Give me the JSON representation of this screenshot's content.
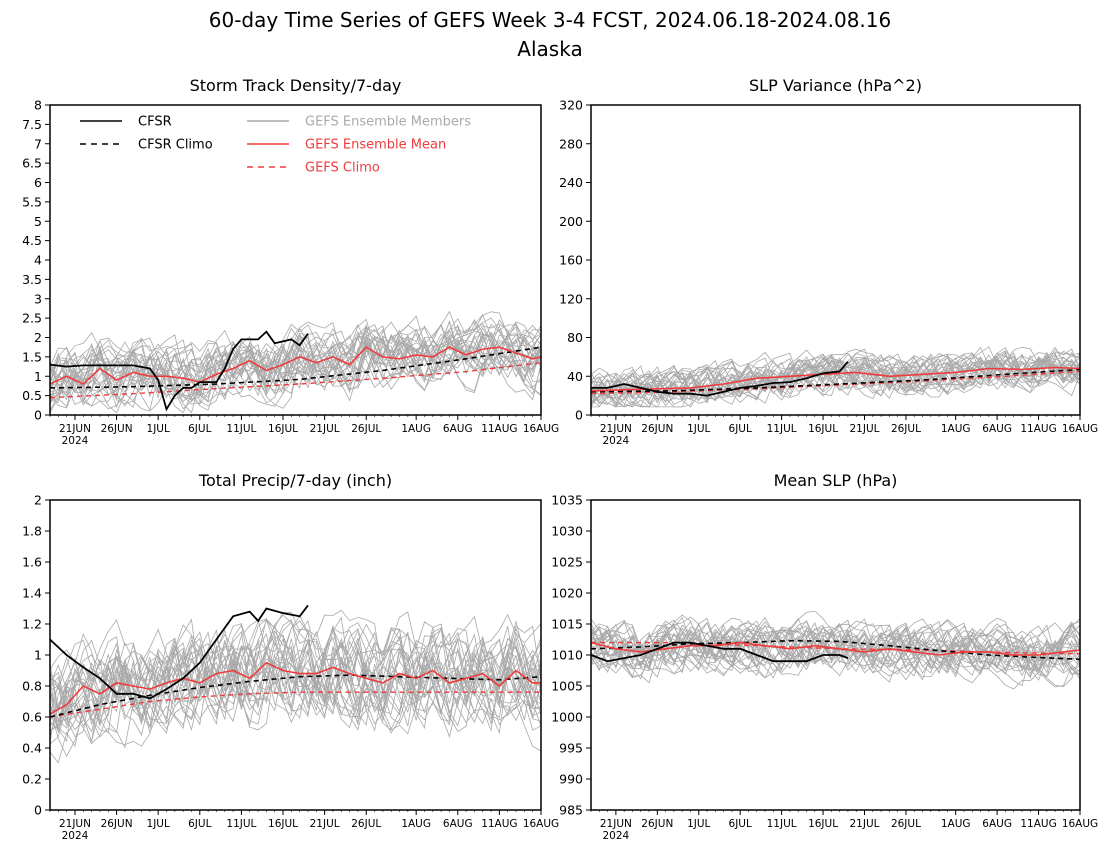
{
  "figure": {
    "title": "60-day Time Series of GEFS Week 3-4 FCST, 2024.06.18-2024.08.16",
    "subtitle": "Alaska"
  },
  "colors": {
    "cfsr": "#000000",
    "members": "#a9a9a9",
    "mean": "#ef3b3b",
    "climo_gefs": "#ef3b3b",
    "axis": "#000000"
  },
  "legend": {
    "placement": "top-left",
    "entries": [
      {
        "label": "CFSR",
        "series": "cfsr",
        "style": "solid",
        "color": "#000000"
      },
      {
        "label": "CFSR Climo",
        "series": "cfsr_climo",
        "style": "dashed",
        "color": "#000000"
      },
      {
        "label": "GEFS Ensemble Members",
        "series": "members",
        "style": "solid",
        "color": "#a9a9a9"
      },
      {
        "label": "GEFS Ensemble Mean",
        "series": "mean",
        "style": "solid",
        "color": "#ef3b3b"
      },
      {
        "label": "GEFS Climo",
        "series": "gefs_climo",
        "style": "dashed",
        "color": "#ef3b3b"
      }
    ]
  },
  "x_axis": {
    "ticks": [
      "21JUN",
      "26JUN",
      "1JUL",
      "6JUL",
      "11JUL",
      "16JUL",
      "21JUL",
      "26JUL",
      "1AUG",
      "6AUG",
      "11AUG",
      "16AUG"
    ],
    "tick_days": [
      3,
      8,
      13,
      18,
      23,
      28,
      33,
      38,
      44,
      49,
      54,
      59
    ],
    "year_label": "2024",
    "range_days": [
      0,
      59
    ]
  },
  "chart_data": [
    {
      "type": "line",
      "title": "Storm Track Density/7-day",
      "ylim": [
        0,
        8
      ],
      "yticks": [
        0,
        0.5,
        1,
        1.5,
        2,
        2.5,
        3,
        3.5,
        4,
        4.5,
        5,
        5.5,
        6,
        6.5,
        7,
        7.5,
        8
      ],
      "ytick_labels": [
        "0",
        "0.5",
        "1",
        "1.5",
        "2",
        "2.5",
        "3",
        "3.5",
        "4",
        "4.5",
        "5",
        "5.5",
        "6",
        "6.5",
        "7",
        "7.5",
        "8"
      ],
      "member_spread": {
        "low": 0.1,
        "high": 2.8
      },
      "series": [
        {
          "name": "CFSR",
          "key": "cfsr",
          "x": [
            0,
            2,
            4,
            6,
            8,
            10,
            12,
            13,
            14,
            15,
            16,
            17,
            18,
            19,
            20,
            21,
            22,
            23,
            24,
            25,
            26,
            27,
            28,
            29,
            30,
            31
          ],
          "values": [
            1.3,
            1.25,
            1.28,
            1.28,
            1.28,
            1.28,
            1.2,
            0.9,
            0.15,
            0.5,
            0.7,
            0.7,
            0.85,
            0.85,
            0.85,
            1.2,
            1.7,
            1.95,
            1.95,
            1.95,
            2.15,
            1.85,
            1.9,
            1.95,
            1.8,
            2.1
          ]
        },
        {
          "name": "CFSR Climo",
          "key": "cfsr_climo",
          "x": [
            0,
            10,
            20,
            30,
            40,
            50,
            59
          ],
          "values": [
            0.7,
            0.73,
            0.8,
            0.92,
            1.15,
            1.45,
            1.75
          ]
        },
        {
          "name": "GEFS Ensemble Mean",
          "key": "mean",
          "x": [
            0,
            2,
            4,
            6,
            8,
            10,
            12,
            14,
            16,
            18,
            20,
            22,
            24,
            26,
            28,
            30,
            32,
            34,
            36,
            38,
            40,
            42,
            44,
            46,
            48,
            50,
            52,
            54,
            56,
            58,
            59
          ],
          "values": [
            0.8,
            1.0,
            0.8,
            1.2,
            0.9,
            1.1,
            1.0,
            1.0,
            0.95,
            0.85,
            1.05,
            1.2,
            1.4,
            1.15,
            1.3,
            1.5,
            1.35,
            1.5,
            1.3,
            1.75,
            1.5,
            1.45,
            1.55,
            1.5,
            1.75,
            1.55,
            1.7,
            1.75,
            1.6,
            1.45,
            1.5
          ]
        },
        {
          "name": "GEFS Climo",
          "key": "gefs_climo",
          "x": [
            0,
            10,
            20,
            30,
            40,
            50,
            59
          ],
          "values": [
            0.45,
            0.55,
            0.68,
            0.8,
            0.95,
            1.12,
            1.35
          ]
        }
      ]
    },
    {
      "type": "line",
      "title": "SLP Variance (hPa^2)",
      "ylim": [
        0,
        320
      ],
      "yticks": [
        0,
        40,
        80,
        120,
        160,
        200,
        240,
        280,
        320
      ],
      "ytick_labels": [
        "0",
        "40",
        "80",
        "120",
        "160",
        "200",
        "240",
        "280",
        "320"
      ],
      "member_spread": {
        "low": 14,
        "high": 85
      },
      "series": [
        {
          "name": "CFSR",
          "key": "cfsr",
          "x": [
            0,
            2,
            4,
            6,
            8,
            10,
            12,
            14,
            16,
            18,
            20,
            22,
            24,
            26,
            28,
            30,
            31
          ],
          "values": [
            28,
            28,
            32,
            28,
            24,
            22,
            22,
            20,
            24,
            28,
            30,
            33,
            34,
            38,
            43,
            45,
            55
          ]
        },
        {
          "name": "CFSR Climo",
          "key": "cfsr_climo",
          "x": [
            0,
            10,
            20,
            30,
            40,
            50,
            59
          ],
          "values": [
            24,
            25,
            28,
            32,
            36,
            42,
            47
          ]
        },
        {
          "name": "GEFS Ensemble Mean",
          "key": "mean",
          "x": [
            0,
            4,
            8,
            12,
            16,
            20,
            24,
            28,
            32,
            36,
            40,
            44,
            48,
            52,
            56,
            59
          ],
          "values": [
            25,
            26,
            27,
            28,
            32,
            38,
            40,
            42,
            44,
            40,
            42,
            44,
            48,
            47,
            49,
            48
          ]
        },
        {
          "name": "GEFS Climo",
          "key": "gefs_climo",
          "x": [
            0,
            10,
            20,
            30,
            40,
            50,
            59
          ],
          "values": [
            22,
            24,
            27,
            31,
            35,
            40,
            45
          ]
        }
      ]
    },
    {
      "type": "line",
      "title": "Total Precip/7-day (inch)",
      "ylim": [
        0,
        2
      ],
      "yticks": [
        0,
        0.2,
        0.4,
        0.6,
        0.8,
        1,
        1.2,
        1.4,
        1.6,
        1.8,
        2
      ],
      "ytick_labels": [
        "0",
        "0.2",
        "0.4",
        "0.6",
        "0.8",
        "1",
        "1.2",
        "1.4",
        "1.6",
        "1.8",
        "2"
      ],
      "member_spread": {
        "low": 0.35,
        "high": 1.4
      },
      "series": [
        {
          "name": "CFSR",
          "key": "cfsr",
          "x": [
            0,
            2,
            4,
            6,
            8,
            10,
            12,
            14,
            16,
            18,
            20,
            22,
            24,
            25,
            26,
            28,
            30,
            31
          ],
          "values": [
            1.1,
            1.0,
            0.92,
            0.85,
            0.75,
            0.75,
            0.72,
            0.78,
            0.85,
            0.95,
            1.1,
            1.25,
            1.28,
            1.22,
            1.3,
            1.27,
            1.25,
            1.32
          ]
        },
        {
          "name": "CFSR Climo",
          "key": "cfsr_climo",
          "x": [
            0,
            6,
            12,
            18,
            24,
            30,
            36,
            42,
            48,
            54,
            59
          ],
          "values": [
            0.6,
            0.68,
            0.74,
            0.79,
            0.83,
            0.86,
            0.87,
            0.86,
            0.85,
            0.84,
            0.86
          ]
        },
        {
          "name": "GEFS Ensemble Mean",
          "key": "mean",
          "x": [
            0,
            2,
            4,
            6,
            8,
            10,
            12,
            14,
            16,
            18,
            20,
            22,
            24,
            26,
            28,
            30,
            32,
            34,
            36,
            38,
            40,
            42,
            44,
            46,
            48,
            50,
            52,
            54,
            56,
            58,
            59
          ],
          "values": [
            0.62,
            0.68,
            0.8,
            0.75,
            0.82,
            0.8,
            0.78,
            0.82,
            0.85,
            0.82,
            0.88,
            0.9,
            0.85,
            0.95,
            0.9,
            0.88,
            0.88,
            0.92,
            0.88,
            0.85,
            0.82,
            0.88,
            0.85,
            0.9,
            0.82,
            0.85,
            0.88,
            0.8,
            0.9,
            0.82,
            0.82
          ]
        },
        {
          "name": "GEFS Climo",
          "key": "gefs_climo",
          "x": [
            0,
            6,
            12,
            18,
            24,
            30,
            36,
            42,
            48,
            54,
            59
          ],
          "values": [
            0.6,
            0.65,
            0.7,
            0.73,
            0.75,
            0.76,
            0.76,
            0.76,
            0.76,
            0.76,
            0.76
          ]
        }
      ]
    },
    {
      "type": "line",
      "title": "Mean SLP (hPa)",
      "ylim": [
        985,
        1035
      ],
      "yticks": [
        985,
        990,
        995,
        1000,
        1005,
        1010,
        1015,
        1020,
        1025,
        1030,
        1035
      ],
      "ytick_labels": [
        "985",
        "990",
        "995",
        "1000",
        "1005",
        "1010",
        "1015",
        "1020",
        "1025",
        "1030",
        "1035"
      ],
      "member_spread": {
        "low": 1004,
        "high": 1018
      },
      "series": [
        {
          "name": "CFSR",
          "key": "cfsr",
          "x": [
            0,
            2,
            4,
            6,
            8,
            10,
            12,
            14,
            16,
            18,
            20,
            22,
            24,
            26,
            28,
            30,
            31
          ],
          "values": [
            1010,
            1009,
            1009.5,
            1010,
            1011,
            1012,
            1012,
            1011.5,
            1011,
            1011,
            1010,
            1009,
            1009,
            1009,
            1010,
            1010,
            1009.5
          ]
        },
        {
          "name": "CFSR Climo",
          "key": "cfsr_climo",
          "x": [
            0,
            6,
            12,
            18,
            24,
            30,
            36,
            42,
            48,
            54,
            59
          ],
          "values": [
            1011,
            1011.3,
            1011.8,
            1012,
            1012.3,
            1012.2,
            1011.5,
            1010.7,
            1010,
            1009.6,
            1009.3
          ]
        },
        {
          "name": "GEFS Ensemble Mean",
          "key": "mean",
          "x": [
            0,
            3,
            6,
            9,
            12,
            15,
            18,
            21,
            24,
            27,
            30,
            33,
            36,
            39,
            42,
            45,
            48,
            51,
            54,
            57,
            59
          ],
          "values": [
            1012,
            1011,
            1010.5,
            1011,
            1011.5,
            1011.5,
            1012,
            1011.5,
            1011,
            1011.5,
            1011,
            1010.5,
            1011,
            1010.5,
            1010,
            1010.5,
            1010.5,
            1010,
            1010,
            1010.5,
            1010.8
          ]
        },
        {
          "name": "GEFS Climo",
          "key": "gefs_climo",
          "x": [
            0,
            10,
            20,
            30,
            40,
            50,
            59
          ],
          "values": [
            1012,
            1012,
            1011.5,
            1011,
            1010.8,
            1010.4,
            1010.2
          ]
        }
      ]
    }
  ]
}
